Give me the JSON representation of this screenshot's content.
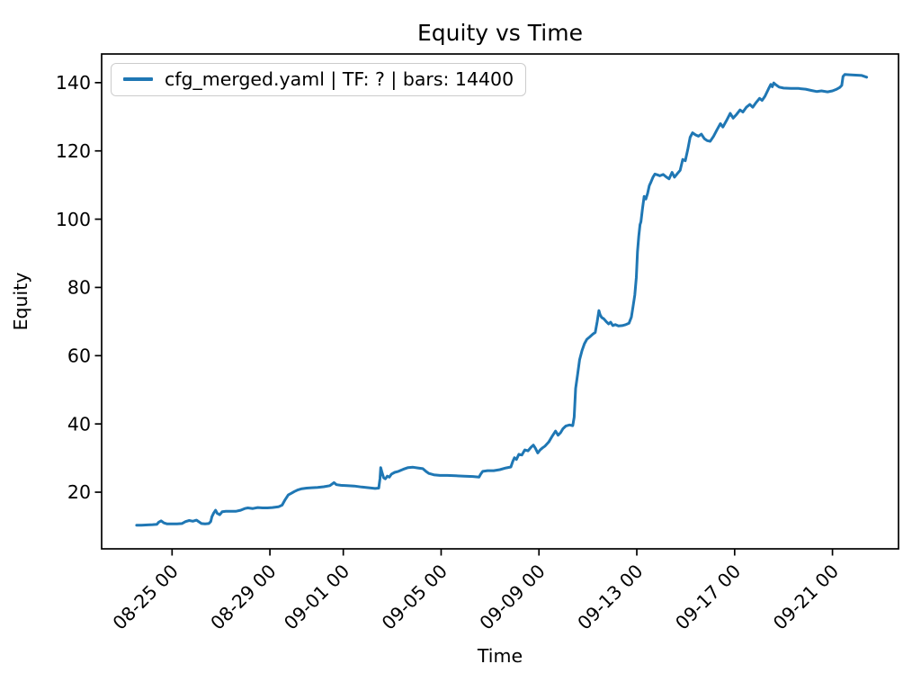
{
  "figure": {
    "background": "#ffffff",
    "title": "Equity vs Time",
    "xlabel": "Time",
    "ylabel": "Equity"
  },
  "legend": {
    "label": "cfg_merged.yaml | TF: ? | bars: 14400",
    "position": "upper left"
  },
  "chart_data": {
    "type": "line",
    "title": "Equity vs Time",
    "xlabel": "Time",
    "ylabel": "Equity",
    "grid": false,
    "line_color": "#1f77b4",
    "axis_color": "#000000",
    "x_unit": "days relative to tick 08-25 00",
    "xlim": [
      -2.88,
      29.7
    ],
    "ylim": [
      3.4,
      148.4
    ],
    "y_ticks": [
      20,
      40,
      60,
      80,
      100,
      120,
      140
    ],
    "x_ticks": [
      {
        "t": 0,
        "label": "08-25 00"
      },
      {
        "t": 4,
        "label": "08-29 00"
      },
      {
        "t": 7,
        "label": "09-01 00"
      },
      {
        "t": 11,
        "label": "09-05 00"
      },
      {
        "t": 15,
        "label": "09-09 00"
      },
      {
        "t": 19,
        "label": "09-13 00"
      },
      {
        "t": 23,
        "label": "09-17 00"
      },
      {
        "t": 27,
        "label": "09-21 00"
      }
    ],
    "series": [
      {
        "name": "cfg_merged.yaml | TF: ? | bars: 14400",
        "points": [
          [
            -1.45,
            10.3
          ],
          [
            -1.25,
            10.3
          ],
          [
            -1.0,
            10.4
          ],
          [
            -0.8,
            10.5
          ],
          [
            -0.62,
            10.6
          ],
          [
            -0.55,
            11.2
          ],
          [
            -0.45,
            11.6
          ],
          [
            -0.33,
            11.0
          ],
          [
            -0.2,
            10.7
          ],
          [
            0.0,
            10.7
          ],
          [
            0.2,
            10.7
          ],
          [
            0.4,
            10.8
          ],
          [
            0.55,
            11.4
          ],
          [
            0.7,
            11.7
          ],
          [
            0.85,
            11.5
          ],
          [
            1.0,
            11.8
          ],
          [
            1.12,
            11.2
          ],
          [
            1.2,
            10.8
          ],
          [
            1.35,
            10.7
          ],
          [
            1.5,
            10.8
          ],
          [
            1.58,
            11.4
          ],
          [
            1.63,
            12.8
          ],
          [
            1.7,
            13.9
          ],
          [
            1.78,
            14.7
          ],
          [
            1.85,
            13.8
          ],
          [
            1.95,
            13.4
          ],
          [
            2.05,
            14.3
          ],
          [
            2.2,
            14.4
          ],
          [
            2.4,
            14.4
          ],
          [
            2.6,
            14.4
          ],
          [
            2.8,
            14.7
          ],
          [
            2.97,
            15.2
          ],
          [
            3.1,
            15.4
          ],
          [
            3.3,
            15.2
          ],
          [
            3.5,
            15.5
          ],
          [
            3.7,
            15.4
          ],
          [
            3.9,
            15.4
          ],
          [
            4.1,
            15.5
          ],
          [
            4.35,
            15.7
          ],
          [
            4.5,
            16.2
          ],
          [
            4.62,
            17.8
          ],
          [
            4.75,
            19.2
          ],
          [
            4.88,
            19.7
          ],
          [
            5.0,
            20.2
          ],
          [
            5.15,
            20.7
          ],
          [
            5.3,
            21.0
          ],
          [
            5.5,
            21.2
          ],
          [
            5.7,
            21.3
          ],
          [
            5.95,
            21.4
          ],
          [
            6.2,
            21.6
          ],
          [
            6.45,
            21.9
          ],
          [
            6.62,
            22.8
          ],
          [
            6.72,
            22.2
          ],
          [
            6.9,
            22.0
          ],
          [
            7.15,
            21.9
          ],
          [
            7.45,
            21.8
          ],
          [
            7.75,
            21.5
          ],
          [
            8.05,
            21.3
          ],
          [
            8.3,
            21.1
          ],
          [
            8.45,
            21.2
          ],
          [
            8.5,
            24.0
          ],
          [
            8.53,
            27.2
          ],
          [
            8.58,
            25.8
          ],
          [
            8.65,
            24.2
          ],
          [
            8.72,
            23.9
          ],
          [
            8.8,
            24.7
          ],
          [
            8.88,
            24.4
          ],
          [
            8.97,
            25.3
          ],
          [
            9.1,
            25.8
          ],
          [
            9.25,
            26.1
          ],
          [
            9.45,
            26.7
          ],
          [
            9.65,
            27.2
          ],
          [
            9.85,
            27.3
          ],
          [
            10.05,
            27.1
          ],
          [
            10.25,
            26.9
          ],
          [
            10.4,
            26.0
          ],
          [
            10.5,
            25.5
          ],
          [
            10.7,
            25.1
          ],
          [
            10.95,
            24.9
          ],
          [
            11.25,
            24.9
          ],
          [
            11.6,
            24.8
          ],
          [
            11.95,
            24.7
          ],
          [
            12.3,
            24.6
          ],
          [
            12.55,
            24.4
          ],
          [
            12.62,
            25.3
          ],
          [
            12.7,
            26.1
          ],
          [
            12.9,
            26.3
          ],
          [
            13.15,
            26.3
          ],
          [
            13.4,
            26.6
          ],
          [
            13.65,
            27.1
          ],
          [
            13.85,
            27.4
          ],
          [
            13.93,
            29.0
          ],
          [
            14.0,
            30.1
          ],
          [
            14.08,
            29.6
          ],
          [
            14.18,
            31.1
          ],
          [
            14.3,
            30.9
          ],
          [
            14.42,
            32.4
          ],
          [
            14.55,
            32.1
          ],
          [
            14.68,
            33.2
          ],
          [
            14.77,
            33.8
          ],
          [
            14.85,
            32.9
          ],
          [
            14.95,
            31.5
          ],
          [
            15.05,
            32.4
          ],
          [
            15.15,
            33.0
          ],
          [
            15.25,
            33.5
          ],
          [
            15.4,
            34.7
          ],
          [
            15.55,
            36.5
          ],
          [
            15.68,
            37.9
          ],
          [
            15.78,
            36.7
          ],
          [
            15.88,
            37.4
          ],
          [
            15.98,
            38.6
          ],
          [
            16.1,
            39.4
          ],
          [
            16.25,
            39.7
          ],
          [
            16.38,
            39.5
          ],
          [
            16.44,
            42.0
          ],
          [
            16.5,
            50.4
          ],
          [
            16.58,
            54.5
          ],
          [
            16.66,
            58.8
          ],
          [
            16.76,
            61.5
          ],
          [
            16.86,
            63.5
          ],
          [
            16.96,
            64.8
          ],
          [
            17.08,
            65.5
          ],
          [
            17.2,
            66.3
          ],
          [
            17.3,
            66.8
          ],
          [
            17.38,
            70.0
          ],
          [
            17.45,
            73.2
          ],
          [
            17.5,
            72.0
          ],
          [
            17.56,
            71.2
          ],
          [
            17.65,
            70.8
          ],
          [
            17.75,
            70.0
          ],
          [
            17.85,
            69.3
          ],
          [
            17.93,
            69.8
          ],
          [
            18.02,
            68.8
          ],
          [
            18.12,
            69.1
          ],
          [
            18.25,
            68.7
          ],
          [
            18.4,
            68.8
          ],
          [
            18.55,
            69.1
          ],
          [
            18.68,
            69.5
          ],
          [
            18.78,
            71.3
          ],
          [
            18.85,
            74.5
          ],
          [
            18.92,
            77.8
          ],
          [
            18.98,
            83.0
          ],
          [
            19.03,
            90.5
          ],
          [
            19.08,
            95.0
          ],
          [
            19.13,
            98.4
          ],
          [
            19.17,
            99.2
          ],
          [
            19.23,
            103.0
          ],
          [
            19.3,
            106.7
          ],
          [
            19.37,
            105.9
          ],
          [
            19.44,
            107.5
          ],
          [
            19.51,
            109.8
          ],
          [
            19.58,
            110.9
          ],
          [
            19.66,
            112.3
          ],
          [
            19.74,
            113.2
          ],
          [
            19.84,
            113.0
          ],
          [
            19.94,
            112.7
          ],
          [
            20.08,
            113.1
          ],
          [
            20.2,
            112.4
          ],
          [
            20.32,
            111.8
          ],
          [
            20.44,
            113.7
          ],
          [
            20.54,
            112.3
          ],
          [
            20.66,
            113.4
          ],
          [
            20.77,
            114.3
          ],
          [
            20.88,
            117.5
          ],
          [
            20.98,
            117.1
          ],
          [
            21.08,
            120.3
          ],
          [
            21.18,
            124.0
          ],
          [
            21.28,
            125.3
          ],
          [
            21.4,
            124.7
          ],
          [
            21.52,
            124.3
          ],
          [
            21.64,
            124.9
          ],
          [
            21.76,
            123.6
          ],
          [
            21.88,
            123.0
          ],
          [
            22.0,
            122.8
          ],
          [
            22.14,
            124.3
          ],
          [
            22.28,
            126.2
          ],
          [
            22.42,
            128.0
          ],
          [
            22.52,
            127.0
          ],
          [
            22.66,
            128.8
          ],
          [
            22.82,
            131.0
          ],
          [
            22.94,
            129.6
          ],
          [
            23.08,
            130.7
          ],
          [
            23.22,
            132.0
          ],
          [
            23.34,
            131.4
          ],
          [
            23.48,
            132.8
          ],
          [
            23.62,
            133.6
          ],
          [
            23.74,
            132.8
          ],
          [
            23.88,
            134.2
          ],
          [
            24.02,
            135.4
          ],
          [
            24.12,
            134.8
          ],
          [
            24.24,
            136.0
          ],
          [
            24.38,
            138.1
          ],
          [
            24.48,
            139.5
          ],
          [
            24.54,
            138.8
          ],
          [
            24.6,
            139.9
          ],
          [
            24.68,
            139.4
          ],
          [
            24.82,
            138.7
          ],
          [
            25.0,
            138.4
          ],
          [
            25.3,
            138.3
          ],
          [
            25.6,
            138.3
          ],
          [
            25.9,
            138.1
          ],
          [
            26.15,
            137.7
          ],
          [
            26.35,
            137.4
          ],
          [
            26.55,
            137.6
          ],
          [
            26.8,
            137.3
          ],
          [
            27.0,
            137.6
          ],
          [
            27.15,
            138.0
          ],
          [
            27.3,
            138.6
          ],
          [
            27.38,
            139.2
          ],
          [
            27.43,
            141.8
          ],
          [
            27.5,
            142.4
          ],
          [
            27.7,
            142.3
          ],
          [
            27.95,
            142.2
          ],
          [
            28.2,
            142.1
          ],
          [
            28.4,
            141.6
          ]
        ]
      }
    ]
  }
}
